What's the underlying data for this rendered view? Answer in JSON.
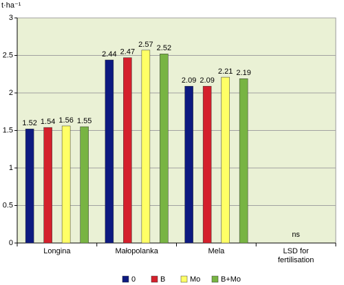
{
  "chart_data": {
    "type": "bar",
    "y_label": "t·ha⁻¹",
    "categories": [
      "Longina",
      "Małopolanka",
      "Mela",
      "LSD for fertilisation"
    ],
    "series": [
      {
        "name": "0",
        "color": "#0d1a80",
        "values": [
          1.52,
          2.44,
          2.09,
          null
        ]
      },
      {
        "name": "B",
        "color": "#d4202c",
        "values": [
          1.54,
          2.47,
          2.09,
          null
        ]
      },
      {
        "name": "Mo",
        "color": "#ffff66",
        "values": [
          1.56,
          2.57,
          2.21,
          null
        ]
      },
      {
        "name": "B+Mo",
        "color": "#78b443",
        "values": [
          1.55,
          2.52,
          2.19,
          null
        ]
      }
    ],
    "annotation": "ns",
    "ylim": [
      0,
      3
    ],
    "yticks": [
      0,
      0.5,
      1,
      1.5,
      2,
      2.5,
      3
    ],
    "grid": true,
    "background": "#eaf1d5"
  }
}
